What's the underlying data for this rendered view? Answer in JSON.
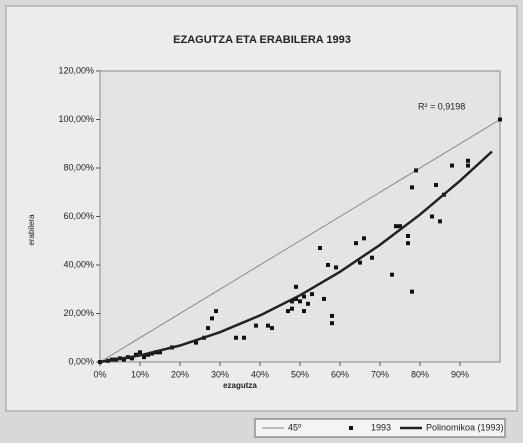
{
  "chart_data": {
    "type": "scatter",
    "title": "EZAGUTZA ETA ERABILERA 1993",
    "x_label": "ezagutza",
    "y_label": "erabilera",
    "annotation": "R² = 0,9198",
    "xlim": [
      0,
      100
    ],
    "ylim": [
      0,
      120
    ],
    "xticks": [
      {
        "value": 0,
        "label": "0%"
      },
      {
        "value": 10,
        "label": "10%"
      },
      {
        "value": 20,
        "label": "20%"
      },
      {
        "value": 30,
        "label": "30%"
      },
      {
        "value": 40,
        "label": "40%"
      },
      {
        "value": 50,
        "label": "50%"
      },
      {
        "value": 60,
        "label": "60%"
      },
      {
        "value": 70,
        "label": "70%"
      },
      {
        "value": 80,
        "label": "80%"
      },
      {
        "value": 90,
        "label": "90%"
      }
    ],
    "yticks": [
      {
        "value": 0,
        "label": "0,00%"
      },
      {
        "value": 20,
        "label": "20,00%"
      },
      {
        "value": 40,
        "label": "40,00%"
      },
      {
        "value": 60,
        "label": "60,00%"
      },
      {
        "value": 80,
        "label": "80,00%"
      },
      {
        "value": 100,
        "label": "100,00%"
      },
      {
        "value": 120,
        "label": "120,00%"
      }
    ],
    "legend": "bottom-right",
    "series": [
      {
        "name": "45º",
        "color": "#8a8a8a",
        "style": "line",
        "width": 1,
        "x": [
          0,
          100
        ],
        "values": [
          0,
          100
        ]
      },
      {
        "name": "1993",
        "color": "#111111",
        "style": "marker",
        "x": [
          0,
          2,
          3,
          4,
          5,
          6,
          7,
          8,
          9,
          10,
          11,
          12,
          13,
          14,
          15,
          18,
          24,
          26,
          27,
          28,
          29,
          34,
          36,
          39,
          42,
          43,
          47,
          48,
          48,
          49,
          49,
          50,
          51,
          51,
          52,
          53,
          55,
          56,
          57,
          58,
          58,
          59,
          64,
          65,
          66,
          68,
          73,
          74,
          75,
          77,
          77,
          78,
          78,
          79,
          83,
          84,
          85,
          86,
          88,
          92,
          92,
          100
        ],
        "values": [
          0,
          0.5,
          1,
          1,
          1.5,
          1,
          2,
          1.5,
          3,
          4,
          2,
          3,
          3.5,
          4,
          4,
          6,
          8,
          10,
          14,
          18,
          21,
          10,
          10,
          15,
          15,
          14,
          21,
          22,
          25,
          26,
          31,
          25,
          21,
          27,
          24,
          28,
          47,
          26,
          40,
          19,
          16,
          39,
          49,
          41,
          51,
          43,
          36,
          56,
          56,
          52,
          49,
          72,
          29,
          79,
          60,
          73,
          58,
          69,
          81,
          83,
          81,
          100
        ]
      },
      {
        "name": "Polinomikoa (1993)",
        "color": "#222222",
        "style": "line",
        "width": 2.5,
        "x": [
          0,
          10,
          20,
          30,
          40,
          50,
          60,
          70,
          80,
          90,
          98
        ],
        "values": [
          0,
          2.7,
          6.8,
          12.3,
          19.2,
          27.5,
          37.2,
          48.3,
          60.8,
          74.7,
          86.8
        ]
      }
    ]
  }
}
